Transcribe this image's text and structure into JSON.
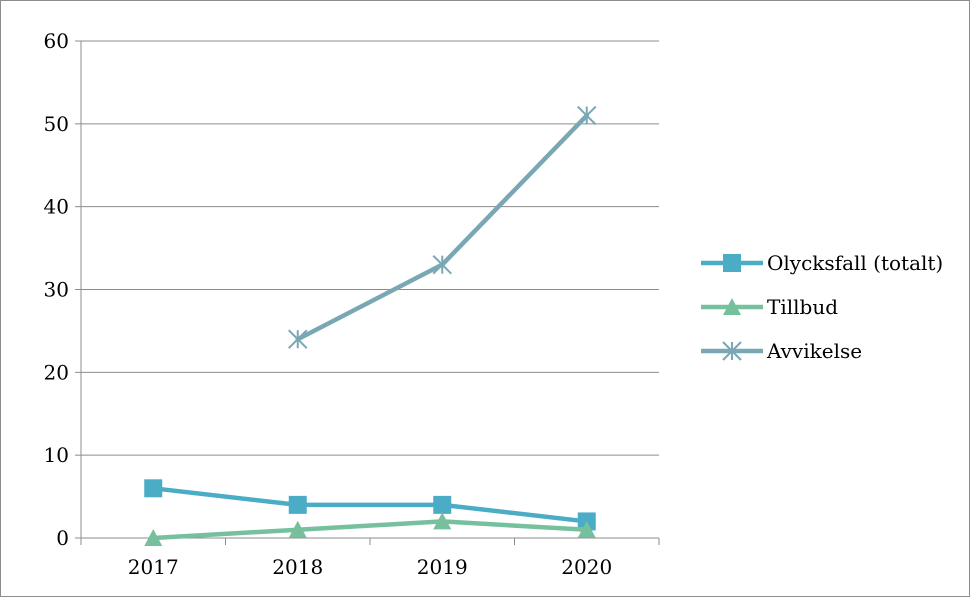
{
  "chart_data": {
    "type": "line",
    "title": "",
    "xlabel": "",
    "ylabel": "",
    "categories": [
      "2017",
      "2018",
      "2019",
      "2020"
    ],
    "ylim": [
      0,
      60
    ],
    "yticks": [
      "0",
      "10",
      "20",
      "30",
      "40",
      "50",
      "60"
    ],
    "grid": "horizontal",
    "legend_position": "right",
    "series": [
      {
        "name": "Olycksfall (totalt)",
        "values": [
          6,
          4,
          4,
          2
        ],
        "color": "#4bacc6",
        "marker": "square"
      },
      {
        "name": "Tillbud",
        "values": [
          0,
          1,
          2,
          1
        ],
        "color": "#77c09e",
        "marker": "triangle"
      },
      {
        "name": "Avvikelse",
        "values": [
          null,
          24,
          33,
          51
        ],
        "color": "#7aa7b4",
        "marker": "star"
      }
    ]
  }
}
